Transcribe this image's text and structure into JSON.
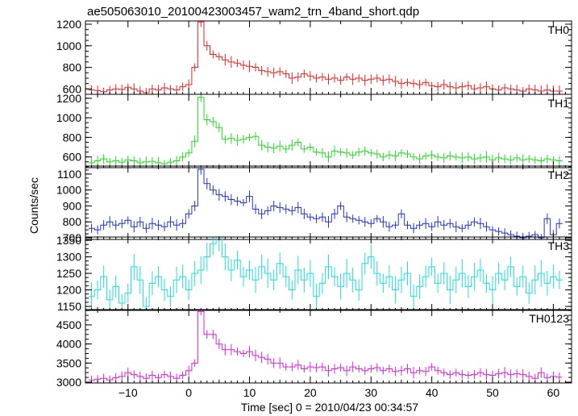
{
  "title": "ae505063010_20100423003457_wam2_trn_4band_short.qdp",
  "chart_data": [
    {
      "type": "line",
      "series": [
        {
          "name": "TH0",
          "color": "#ee2222"
        }
      ],
      "ylim": [
        550,
        1230
      ],
      "yticks": [
        "600",
        "800",
        "1000",
        "1200"
      ],
      "x": [
        -16,
        -15,
        -14,
        -13,
        -12,
        -11,
        -10,
        -9,
        -8,
        -7,
        -6,
        -5,
        -4,
        -3,
        -2,
        -1,
        0,
        1,
        2,
        3,
        4,
        5,
        6,
        7,
        8,
        9,
        10,
        11,
        12,
        13,
        14,
        15,
        16,
        17,
        18,
        19,
        20,
        21,
        22,
        23,
        24,
        25,
        26,
        27,
        28,
        29,
        30,
        31,
        32,
        33,
        34,
        35,
        36,
        37,
        38,
        39,
        40,
        41,
        42,
        43,
        44,
        45,
        46,
        47,
        48,
        49,
        50,
        51,
        52,
        53,
        54,
        55,
        56,
        57,
        58,
        59,
        60,
        61
      ],
      "y": [
        590,
        585,
        575,
        590,
        600,
        595,
        615,
        600,
        580,
        565,
        600,
        590,
        610,
        600,
        590,
        620,
        640,
        800,
        1220,
        1000,
        920,
        900,
        870,
        850,
        840,
        820,
        810,
        800,
        770,
        760,
        750,
        760,
        740,
        700,
        710,
        740,
        720,
        700,
        710,
        690,
        700,
        680,
        710,
        690,
        700,
        680,
        690,
        700,
        680,
        690,
        670,
        650,
        660,
        650,
        640,
        660,
        630,
        620,
        640,
        620,
        610,
        620,
        630,
        600,
        610,
        620,
        600,
        590,
        610,
        600,
        590,
        580,
        600,
        590,
        580,
        590,
        580,
        580
      ]
    },
    {
      "type": "line",
      "series": [
        {
          "name": "TH1",
          "color": "#22dd22"
        }
      ],
      "ylim": [
        490,
        1240
      ],
      "yticks": [
        "600",
        "800",
        "1000",
        "1200"
      ],
      "x": [
        -16,
        -15,
        -14,
        -13,
        -12,
        -11,
        -10,
        -9,
        -8,
        -7,
        -6,
        -5,
        -4,
        -3,
        -2,
        -1,
        0,
        1,
        2,
        3,
        4,
        5,
        6,
        7,
        8,
        9,
        10,
        11,
        12,
        13,
        14,
        15,
        16,
        17,
        18,
        19,
        20,
        21,
        22,
        23,
        24,
        25,
        26,
        27,
        28,
        29,
        30,
        31,
        32,
        33,
        34,
        35,
        36,
        37,
        38,
        39,
        40,
        41,
        42,
        43,
        44,
        45,
        46,
        47,
        48,
        49,
        50,
        51,
        52,
        53,
        54,
        55,
        56,
        57,
        58,
        59,
        60,
        61
      ],
      "y": [
        540,
        560,
        580,
        550,
        560,
        545,
        570,
        560,
        540,
        550,
        555,
        540,
        530,
        545,
        560,
        600,
        640,
        760,
        1210,
        980,
        960,
        900,
        780,
        790,
        770,
        780,
        800,
        810,
        720,
        700,
        690,
        710,
        680,
        720,
        750,
        680,
        700,
        650,
        640,
        600,
        660,
        650,
        640,
        620,
        650,
        660,
        640,
        630,
        600,
        620,
        610,
        640,
        630,
        600,
        580,
        610,
        620,
        600,
        590,
        610,
        600,
        590,
        600,
        580,
        590,
        600,
        570,
        590,
        580,
        570,
        590,
        570,
        580,
        570,
        560,
        580,
        570,
        560
      ]
    },
    {
      "type": "line",
      "series": [
        {
          "name": "TH2",
          "color": "#2233cc"
        }
      ],
      "ylim": [
        690,
        1150
      ],
      "yticks": [
        "700",
        "800",
        "900",
        "1000",
        "1100"
      ],
      "x": [
        -16,
        -15,
        -14,
        -13,
        -12,
        -11,
        -10,
        -9,
        -8,
        -7,
        -6,
        -5,
        -4,
        -3,
        -2,
        -1,
        0,
        1,
        2,
        3,
        4,
        5,
        6,
        7,
        8,
        9,
        10,
        11,
        12,
        13,
        14,
        15,
        16,
        17,
        18,
        19,
        20,
        21,
        22,
        23,
        24,
        25,
        26,
        27,
        28,
        29,
        30,
        31,
        32,
        33,
        34,
        35,
        36,
        37,
        38,
        39,
        40,
        41,
        42,
        43,
        44,
        45,
        46,
        47,
        48,
        49,
        50,
        51,
        52,
        53,
        54,
        55,
        56,
        57,
        58,
        59,
        60,
        61
      ],
      "y": [
        760,
        750,
        780,
        800,
        780,
        790,
        810,
        770,
        800,
        760,
        790,
        780,
        770,
        800,
        780,
        790,
        850,
        900,
        1130,
        1040,
        1000,
        970,
        960,
        940,
        930,
        920,
        960,
        880,
        850,
        870,
        900,
        890,
        880,
        870,
        890,
        850,
        830,
        820,
        830,
        800,
        850,
        900,
        830,
        820,
        810,
        800,
        790,
        820,
        800,
        770,
        780,
        850,
        780,
        760,
        780,
        790,
        770,
        800,
        780,
        790,
        770,
        760,
        780,
        800,
        790,
        770,
        750,
        740,
        730,
        720,
        710,
        700,
        710,
        720,
        700,
        820,
        720,
        790
      ]
    },
    {
      "type": "line",
      "series": [
        {
          "name": "TH3",
          "color": "#22dddd"
        }
      ],
      "ylim": [
        1138,
        1360
      ],
      "yticks": [
        "1150",
        "1200",
        "1250",
        "1300",
        "1350"
      ],
      "x": [
        -16,
        -15,
        -14,
        -13,
        -12,
        -11,
        -10,
        -9,
        -8,
        -7,
        -6,
        -5,
        -4,
        -3,
        -2,
        -1,
        0,
        1,
        2,
        3,
        4,
        5,
        6,
        7,
        8,
        9,
        10,
        11,
        12,
        13,
        14,
        15,
        16,
        17,
        18,
        19,
        20,
        21,
        22,
        23,
        24,
        25,
        26,
        27,
        28,
        29,
        30,
        31,
        32,
        33,
        34,
        35,
        36,
        37,
        38,
        39,
        40,
        41,
        42,
        43,
        44,
        45,
        46,
        47,
        48,
        49,
        50,
        51,
        52,
        53,
        54,
        55,
        56,
        57,
        58,
        59,
        60,
        61
      ],
      "y": [
        1180,
        1200,
        1240,
        1170,
        1210,
        1160,
        1190,
        1270,
        1230,
        1150,
        1220,
        1240,
        1200,
        1180,
        1230,
        1240,
        1200,
        1250,
        1260,
        1300,
        1340,
        1360,
        1300,
        1260,
        1290,
        1240,
        1260,
        1230,
        1270,
        1250,
        1230,
        1280,
        1240,
        1200,
        1260,
        1230,
        1250,
        1180,
        1220,
        1270,
        1240,
        1210,
        1250,
        1230,
        1200,
        1280,
        1300,
        1250,
        1220,
        1240,
        1200,
        1230,
        1250,
        1180,
        1210,
        1240,
        1270,
        1220,
        1250,
        1200,
        1230,
        1250,
        1210,
        1240,
        1260,
        1220,
        1200,
        1250,
        1230,
        1270,
        1210,
        1240,
        1190,
        1230,
        1250,
        1220,
        1240,
        1230
      ]
    },
    {
      "type": "line",
      "series": [
        {
          "name": "TH0123",
          "color": "#dd22dd"
        }
      ],
      "ylim": [
        2980,
        4900
      ],
      "yticks": [
        "3000",
        "3500",
        "4000",
        "4500"
      ],
      "x": [
        -16,
        -15,
        -14,
        -13,
        -12,
        -11,
        -10,
        -9,
        -8,
        -7,
        -6,
        -5,
        -4,
        -3,
        -2,
        -1,
        0,
        1,
        2,
        3,
        4,
        5,
        6,
        7,
        8,
        9,
        10,
        11,
        12,
        13,
        14,
        15,
        16,
        17,
        18,
        19,
        20,
        21,
        22,
        23,
        24,
        25,
        26,
        27,
        28,
        29,
        30,
        31,
        32,
        33,
        34,
        35,
        36,
        37,
        38,
        39,
        40,
        41,
        42,
        43,
        44,
        45,
        46,
        47,
        48,
        49,
        50,
        51,
        52,
        53,
        54,
        55,
        56,
        57,
        58,
        59,
        60,
        61
      ],
      "y": [
        3050,
        3080,
        3100,
        3060,
        3120,
        3150,
        3250,
        3200,
        3150,
        3100,
        3180,
        3120,
        3200,
        3150,
        3100,
        3180,
        3300,
        3500,
        4850,
        4250,
        4250,
        4000,
        3850,
        3850,
        3800,
        3750,
        3800,
        3700,
        3650,
        3600,
        3500,
        3500,
        3400,
        3400,
        3450,
        3350,
        3400,
        3380,
        3400,
        3300,
        3350,
        3380,
        3300,
        3400,
        3350,
        3300,
        3350,
        3380,
        3300,
        3350,
        3280,
        3300,
        3350,
        3250,
        3300,
        3280,
        3400,
        3300,
        3250,
        3200,
        3250,
        3200,
        3180,
        3200,
        3250,
        3200,
        3180,
        3220,
        3250,
        3200,
        3220,
        3200,
        3150,
        3100,
        3250,
        3120,
        3150,
        3130
      ]
    }
  ],
  "xaxis": {
    "xlim": [
      -17,
      63
    ],
    "ticks": [
      "−10",
      "0",
      "10",
      "20",
      "30",
      "40",
      "50",
      "60"
    ],
    "label": "Time [sec] 0 = 2010/04/23 00:34:57"
  },
  "yaxis": {
    "label": "Counts/sec"
  }
}
